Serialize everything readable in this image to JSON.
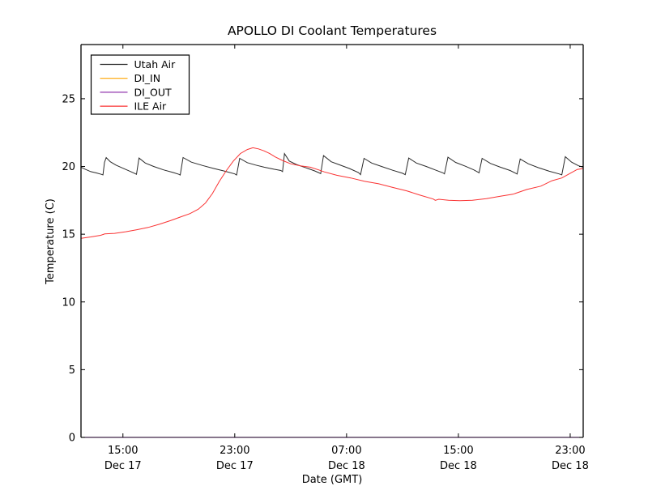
{
  "window": {
    "background": "#ffffff"
  },
  "chart_data": {
    "type": "line",
    "title": "APOLLO DI Coolant Temperatures",
    "xlabel": "Date (GMT)",
    "ylabel": "Temperature (C)",
    "x_unit": "hours since Dec 17 12:00 GMT",
    "xlim": [
      0,
      35.93
    ],
    "ylim": [
      0,
      29
    ],
    "grid": false,
    "legend_position": "upper-left",
    "yticks": [
      {
        "value": 0,
        "label": "0"
      },
      {
        "value": 5,
        "label": "5"
      },
      {
        "value": 10,
        "label": "10"
      },
      {
        "value": 15,
        "label": "15"
      },
      {
        "value": 20,
        "label": "20"
      },
      {
        "value": 25,
        "label": "25"
      }
    ],
    "xticks": [
      {
        "hour": 3,
        "time": "15:00",
        "date": "Dec 17"
      },
      {
        "hour": 11,
        "time": "23:00",
        "date": "Dec 17"
      },
      {
        "hour": 19,
        "time": "07:00",
        "date": "Dec 18"
      },
      {
        "hour": 27,
        "time": "15:00",
        "date": "Dec 18"
      },
      {
        "hour": 35,
        "time": "23:00",
        "date": "Dec 18"
      }
    ],
    "series": [
      {
        "name": "Utah Air",
        "color": "#2b2b2b",
        "points": [
          [
            0,
            19.95
          ],
          [
            0.3,
            19.8
          ],
          [
            0.7,
            19.62
          ],
          [
            1.1,
            19.52
          ],
          [
            1.45,
            19.42
          ],
          [
            1.57,
            19.38
          ],
          [
            1.68,
            20.3
          ],
          [
            1.8,
            20.65
          ],
          [
            2.1,
            20.35
          ],
          [
            2.5,
            20.1
          ],
          [
            3.0,
            19.87
          ],
          [
            3.5,
            19.65
          ],
          [
            3.88,
            19.47
          ],
          [
            3.97,
            19.42
          ],
          [
            4.15,
            20.62
          ],
          [
            4.6,
            20.25
          ],
          [
            5.2,
            20.0
          ],
          [
            5.9,
            19.75
          ],
          [
            6.6,
            19.55
          ],
          [
            7.0,
            19.42
          ],
          [
            7.1,
            19.37
          ],
          [
            7.3,
            20.66
          ],
          [
            7.9,
            20.32
          ],
          [
            8.7,
            20.07
          ],
          [
            9.5,
            19.85
          ],
          [
            10.3,
            19.65
          ],
          [
            11.0,
            19.45
          ],
          [
            11.13,
            19.37
          ],
          [
            11.35,
            20.6
          ],
          [
            11.9,
            20.28
          ],
          [
            12.5,
            20.1
          ],
          [
            13.1,
            19.95
          ],
          [
            13.8,
            19.8
          ],
          [
            14.3,
            19.7
          ],
          [
            14.42,
            19.62
          ],
          [
            14.56,
            20.95
          ],
          [
            14.9,
            20.4
          ],
          [
            15.4,
            20.15
          ],
          [
            16.1,
            19.9
          ],
          [
            16.7,
            19.68
          ],
          [
            17.05,
            19.52
          ],
          [
            17.15,
            19.47
          ],
          [
            17.35,
            20.8
          ],
          [
            17.9,
            20.35
          ],
          [
            18.5,
            20.12
          ],
          [
            19.2,
            19.85
          ],
          [
            19.85,
            19.55
          ],
          [
            20.0,
            19.4
          ],
          [
            20.25,
            20.6
          ],
          [
            20.8,
            20.25
          ],
          [
            21.5,
            20.0
          ],
          [
            22.3,
            19.72
          ],
          [
            23.0,
            19.5
          ],
          [
            23.2,
            19.4
          ],
          [
            23.45,
            20.62
          ],
          [
            24.0,
            20.25
          ],
          [
            24.7,
            20.0
          ],
          [
            25.4,
            19.72
          ],
          [
            25.9,
            19.53
          ],
          [
            26.0,
            19.45
          ],
          [
            26.25,
            20.68
          ],
          [
            26.8,
            20.3
          ],
          [
            27.5,
            20.02
          ],
          [
            28.1,
            19.75
          ],
          [
            28.4,
            19.58
          ],
          [
            28.48,
            19.53
          ],
          [
            28.7,
            20.6
          ],
          [
            29.3,
            20.22
          ],
          [
            30.0,
            19.95
          ],
          [
            30.7,
            19.7
          ],
          [
            31.1,
            19.5
          ],
          [
            31.2,
            19.44
          ],
          [
            31.42,
            20.55
          ],
          [
            32.0,
            20.2
          ],
          [
            32.7,
            19.92
          ],
          [
            33.5,
            19.65
          ],
          [
            34.2,
            19.45
          ],
          [
            34.4,
            19.38
          ],
          [
            34.65,
            20.72
          ],
          [
            35.1,
            20.32
          ],
          [
            35.6,
            20.05
          ],
          [
            35.93,
            19.95
          ]
        ]
      },
      {
        "name": "DI_IN",
        "color": "#ffa500",
        "points": [
          [
            0,
            0
          ],
          [
            35.93,
            0
          ]
        ]
      },
      {
        "name": "DI_OUT",
        "color": "#9137ad",
        "points": [
          [
            0,
            0
          ],
          [
            35.93,
            0
          ]
        ]
      },
      {
        "name": "ILE Air",
        "color": "#fa3232",
        "points": [
          [
            0,
            14.7
          ],
          [
            0.7,
            14.8
          ],
          [
            1.4,
            14.92
          ],
          [
            1.7,
            15.02
          ],
          [
            2.4,
            15.06
          ],
          [
            3.2,
            15.18
          ],
          [
            4.0,
            15.33
          ],
          [
            4.8,
            15.5
          ],
          [
            5.6,
            15.73
          ],
          [
            6.4,
            16.0
          ],
          [
            7.2,
            16.3
          ],
          [
            7.8,
            16.52
          ],
          [
            8.4,
            16.85
          ],
          [
            8.9,
            17.3
          ],
          [
            9.4,
            18.0
          ],
          [
            9.9,
            18.9
          ],
          [
            10.4,
            19.7
          ],
          [
            10.9,
            20.4
          ],
          [
            11.4,
            20.95
          ],
          [
            11.9,
            21.25
          ],
          [
            12.3,
            21.38
          ],
          [
            12.7,
            21.3
          ],
          [
            13.1,
            21.15
          ],
          [
            13.5,
            20.95
          ],
          [
            13.9,
            20.7
          ],
          [
            14.4,
            20.45
          ],
          [
            15.0,
            20.2
          ],
          [
            15.7,
            20.05
          ],
          [
            16.4,
            19.95
          ],
          [
            17.0,
            19.75
          ],
          [
            17.4,
            19.6
          ],
          [
            18.3,
            19.35
          ],
          [
            19.3,
            19.15
          ],
          [
            20.3,
            18.9
          ],
          [
            21.3,
            18.72
          ],
          [
            22.3,
            18.45
          ],
          [
            23.3,
            18.2
          ],
          [
            24.2,
            17.9
          ],
          [
            25.2,
            17.6
          ],
          [
            25.35,
            17.5
          ],
          [
            25.6,
            17.58
          ],
          [
            26.3,
            17.5
          ],
          [
            27.1,
            17.47
          ],
          [
            28.0,
            17.5
          ],
          [
            29.0,
            17.62
          ],
          [
            30.0,
            17.8
          ],
          [
            30.9,
            17.95
          ],
          [
            31.9,
            18.3
          ],
          [
            32.9,
            18.55
          ],
          [
            33.7,
            18.95
          ],
          [
            34.4,
            19.15
          ],
          [
            35.0,
            19.5
          ],
          [
            35.5,
            19.78
          ],
          [
            35.93,
            19.85
          ]
        ]
      }
    ]
  }
}
